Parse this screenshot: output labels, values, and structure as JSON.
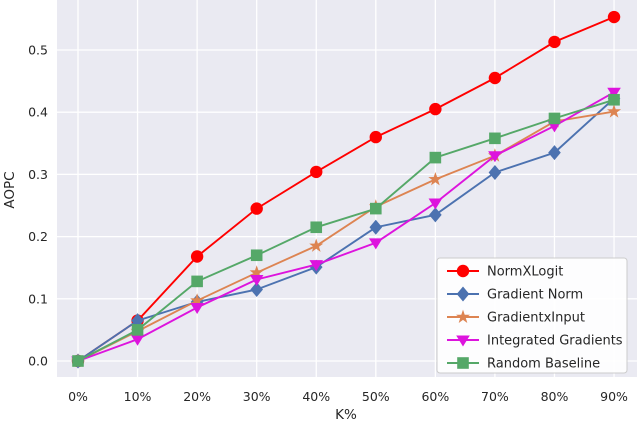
{
  "figure": {
    "background": "#ffffff",
    "plot_background": "#eaeaf2",
    "grid_color": "#ffffff",
    "tick_text_color": "#262626",
    "legend_bg": "#ffffff",
    "legend_border": "#cccccc"
  },
  "chart_data": {
    "type": "line",
    "title": "",
    "xlabel": "K%",
    "ylabel": "AOPC",
    "x_values": [
      0,
      10,
      20,
      30,
      40,
      50,
      60,
      70,
      80,
      90
    ],
    "x_tick_labels": [
      "0%",
      "10%",
      "20%",
      "30%",
      "40%",
      "50%",
      "60%",
      "70%",
      "80%",
      "90%"
    ],
    "y_ticks": [
      0.0,
      0.1,
      0.2,
      0.3,
      0.4,
      0.5
    ],
    "y_tick_labels": [
      "0.0",
      "0.1",
      "0.2",
      "0.3",
      "0.4",
      "0.5"
    ],
    "ylim": [
      -0.026,
      0.58
    ],
    "grid": true,
    "legend_position": "lower-right-inside",
    "series": [
      {
        "name": "NormXLogit",
        "color": "#ff0000",
        "marker": "circle",
        "values": [
          0.0,
          0.065,
          0.168,
          0.245,
          0.304,
          0.36,
          0.405,
          0.455,
          0.513,
          0.553
        ]
      },
      {
        "name": "Gradient Norm",
        "color": "#4c72b0",
        "marker": "diamond",
        "values": [
          0.0,
          0.065,
          0.095,
          0.115,
          0.151,
          0.215,
          0.235,
          0.303,
          0.335,
          0.422
        ]
      },
      {
        "name": "GradientxInput",
        "color": "#dd8452",
        "marker": "star",
        "values": [
          0.0,
          0.048,
          0.097,
          0.142,
          0.185,
          0.248,
          0.292,
          0.33,
          0.385,
          0.401
        ]
      },
      {
        "name": "Integrated Gradients",
        "color": "#dd14dd",
        "marker": "triangle-down",
        "values": [
          0.0,
          0.035,
          0.086,
          0.131,
          0.155,
          0.19,
          0.254,
          0.33,
          0.378,
          0.432
        ]
      },
      {
        "name": "Random Baseline",
        "color": "#55a868",
        "marker": "square",
        "values": [
          0.0,
          0.05,
          0.128,
          0.17,
          0.215,
          0.245,
          0.327,
          0.358,
          0.39,
          0.42
        ]
      }
    ]
  }
}
